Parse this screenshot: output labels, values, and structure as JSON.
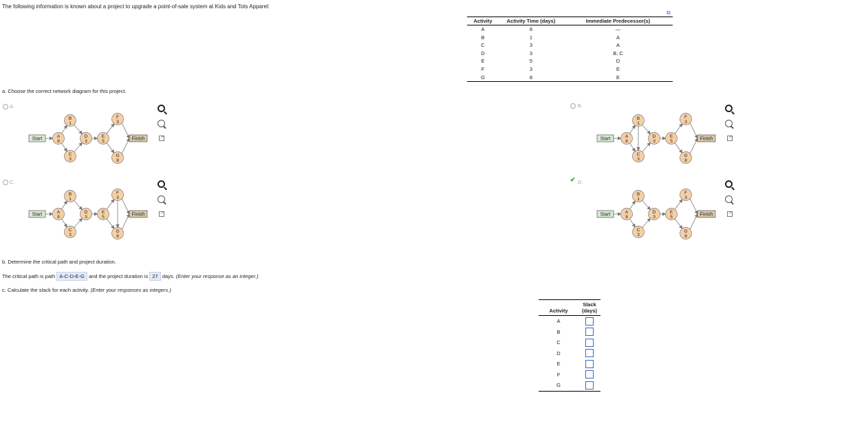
{
  "intro": "The following information is known about a project to upgrade a point-of-sale system at Kids and Tots Apparel:",
  "activity_table": {
    "headers": [
      "Activity",
      "Activity Time (days)",
      "Immediate Predecessor(s)"
    ],
    "rows": [
      [
        "A",
        "8",
        "—"
      ],
      [
        "B",
        "1",
        "A"
      ],
      [
        "C",
        "3",
        "A"
      ],
      [
        "D",
        "3",
        "B, C"
      ],
      [
        "E",
        "5",
        "D"
      ],
      [
        "F",
        "3",
        "E"
      ],
      [
        "G",
        "8",
        "E"
      ]
    ]
  },
  "part_a": {
    "question": "a. Choose the correct network diagram for this project.",
    "options": [
      {
        "label": "A.",
        "selected": false
      },
      {
        "label": "B.",
        "selected": false
      },
      {
        "label": "C.",
        "selected": false
      },
      {
        "label": "D.",
        "selected": true
      }
    ],
    "diagram_labels": {
      "start": "Start",
      "finish": "Finish",
      "A_name": "A",
      "A_time": "8",
      "B_name": "B",
      "B_time": "1",
      "C_name": "C",
      "C_time": "3",
      "D_name": "D",
      "D_time": "3",
      "E_name": "E",
      "E_time": "5",
      "F_name": "F",
      "F_time": "3",
      "G_name": "G",
      "G_time": "8"
    }
  },
  "part_b": {
    "question": "b. Determine the critical path and project duration.",
    "sentence_pre": "The critical path is path",
    "critical_path": "A-C-D-E-G",
    "sentence_mid": "and the project duration is",
    "duration": "27",
    "sentence_post": "days.",
    "hint": "(Enter your response as an integer.)"
  },
  "part_c": {
    "question": "c. Calculate the slack for each activity.",
    "hint": "(Enter your responses as integers.)",
    "headers": [
      "Activity",
      "Slack (days)"
    ],
    "activities": [
      "A",
      "B",
      "C",
      "D",
      "E",
      "F",
      "G"
    ]
  },
  "colors": {
    "node_fill": "#f6cfa6",
    "start_fill": "#d9ead3",
    "finish_fill": "#d9c9a8",
    "answer_bg": "#e3eaf8",
    "input_border": "#3f63c7",
    "check": "#2e9a2e"
  }
}
